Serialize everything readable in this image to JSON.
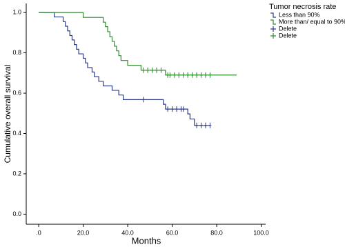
{
  "chart_data": {
    "type": "step",
    "x_label": "Months",
    "y_label": "Cumulative overall survival",
    "legend_title": "Tumor necrosis rate",
    "legend": "right",
    "xlim": [
      -5.6,
      102
    ],
    "ylim": [
      -0.05,
      1.045
    ],
    "xticks": [
      {
        "value": 0,
        "label": ".0"
      },
      {
        "value": 20,
        "label": "20.0"
      },
      {
        "value": 40,
        "label": "40.0"
      },
      {
        "value": 60,
        "label": "60.0"
      },
      {
        "value": 80,
        "label": "80.0"
      },
      {
        "value": 100,
        "label": "100.0"
      }
    ],
    "yticks": [
      {
        "value": 0,
        "label": "0.0"
      },
      0.2,
      0.4,
      0.6,
      0.8,
      {
        "value": 1,
        "label": "1.0"
      }
    ],
    "series": [
      {
        "name": "Less than 90%",
        "color": "#2e3a87",
        "mark": "step",
        "x": [
          0,
          7,
          11,
          12,
          13,
          14,
          15,
          16,
          17,
          18,
          20,
          21,
          22,
          24,
          25,
          27,
          29,
          33,
          36,
          38,
          56,
          57,
          67,
          68,
          70,
          77
        ],
        "values": [
          1.0,
          0.978,
          0.955,
          0.932,
          0.909,
          0.886,
          0.864,
          0.841,
          0.818,
          0.795,
          0.773,
          0.75,
          0.727,
          0.705,
          0.682,
          0.659,
          0.636,
          0.614,
          0.591,
          0.568,
          0.545,
          0.521,
          0.497,
          0.472,
          0.44,
          0.44
        ]
      },
      {
        "name": "More than/ equal to 90%",
        "color": "#2e8b2e",
        "mark": "step",
        "x": [
          0,
          20,
          29,
          30,
          31,
          32,
          33,
          34,
          35,
          36,
          37,
          40,
          46,
          57,
          89
        ],
        "values": [
          1.0,
          0.976,
          0.952,
          0.93,
          0.905,
          0.88,
          0.857,
          0.833,
          0.81,
          0.786,
          0.762,
          0.738,
          0.714,
          0.69,
          0.69
        ]
      },
      {
        "name": "Delete",
        "color": "#2e3a87",
        "mark": "plus",
        "x": [
          47,
          58,
          60,
          62,
          64,
          65,
          71,
          73,
          75,
          77
        ],
        "values": [
          0.568,
          0.521,
          0.521,
          0.521,
          0.521,
          0.521,
          0.44,
          0.44,
          0.44,
          0.44
        ]
      },
      {
        "name": "Delete",
        "color": "#2e8b2e",
        "mark": "plus",
        "x": [
          47,
          49,
          51,
          53,
          55,
          58,
          59,
          61,
          63,
          65,
          67,
          69,
          71,
          73,
          75,
          77
        ],
        "values": [
          0.714,
          0.714,
          0.714,
          0.714,
          0.714,
          0.69,
          0.69,
          0.69,
          0.69,
          0.69,
          0.69,
          0.69,
          0.69,
          0.69,
          0.69,
          0.69
        ]
      }
    ]
  }
}
